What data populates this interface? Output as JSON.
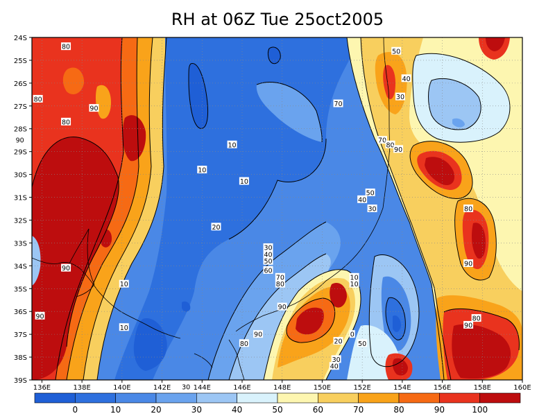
{
  "title": "RH at 06Z Tue 25oct2005",
  "lat_labels": [
    "24S",
    "25S",
    "26S",
    "27S",
    "28S",
    "29S",
    "30S",
    "31S",
    "32S",
    "33S",
    "34S",
    "35S",
    "36S",
    "37S",
    "38S",
    "39S"
  ],
  "lon_labels": [
    "136E",
    "138E",
    "140E",
    "142E",
    "144E",
    "146E",
    "148E",
    "150E",
    "152E",
    "154E",
    "156E",
    "158E",
    "160E"
  ],
  "colorbar": {
    "labels": [
      "0",
      "10",
      "20",
      "30",
      "40",
      "50",
      "60",
      "70",
      "80",
      "90",
      "100"
    ],
    "colors": [
      "#1f5fd6",
      "#2e70de",
      "#4a88e6",
      "#6aa3ee",
      "#9cc6f4",
      "#d9f2fc",
      "#fdf6b0",
      "#f8cf5e",
      "#f9a31a",
      "#f66a14",
      "#e9331e",
      "#bd0d0e"
    ]
  },
  "contour_labels": [
    {
      "text": "80",
      "lon": 137.2,
      "lat": -24.4
    },
    {
      "text": "80",
      "lon": 135.8,
      "lat": -26.7
    },
    {
      "text": "80",
      "lon": 137.2,
      "lat": -27.7
    },
    {
      "text": "90",
      "lon": 138.6,
      "lat": -27.1
    },
    {
      "text": "90",
      "lon": 134.9,
      "lat": -28.5
    },
    {
      "text": "90",
      "lon": 137.2,
      "lat": -34.1
    },
    {
      "text": "90",
      "lon": 135.9,
      "lat": -36.2
    },
    {
      "text": "10",
      "lon": 140.1,
      "lat": -34.8
    },
    {
      "text": "10",
      "lon": 140.1,
      "lat": -36.7
    },
    {
      "text": "10",
      "lon": 145.5,
      "lat": -28.7
    },
    {
      "text": "10",
      "lon": 144.0,
      "lat": -29.8
    },
    {
      "text": "10",
      "lon": 146.1,
      "lat": -30.3
    },
    {
      "text": "20",
      "lon": 144.7,
      "lat": -32.3
    },
    {
      "text": "30",
      "lon": 147.3,
      "lat": -33.2
    },
    {
      "text": "40",
      "lon": 147.3,
      "lat": -33.5
    },
    {
      "text": "50",
      "lon": 147.3,
      "lat": -33.8
    },
    {
      "text": "60",
      "lon": 147.3,
      "lat": -34.2
    },
    {
      "text": "70",
      "lon": 147.9,
      "lat": -34.5
    },
    {
      "text": "80",
      "lon": 147.9,
      "lat": -34.8
    },
    {
      "text": "90",
      "lon": 148.0,
      "lat": -35.8
    },
    {
      "text": "90",
      "lon": 146.8,
      "lat": -37.0
    },
    {
      "text": "80",
      "lon": 146.1,
      "lat": -37.4
    },
    {
      "text": "70",
      "lon": 150.8,
      "lat": -26.9
    },
    {
      "text": "50",
      "lon": 153.7,
      "lat": -24.6
    },
    {
      "text": "40",
      "lon": 154.2,
      "lat": -25.8
    },
    {
      "text": "30",
      "lon": 153.9,
      "lat": -26.6
    },
    {
      "text": "70",
      "lon": 153.0,
      "lat": -28.5
    },
    {
      "text": "80",
      "lon": 153.4,
      "lat": -28.7
    },
    {
      "text": "90",
      "lon": 153.8,
      "lat": -28.9
    },
    {
      "text": "50",
      "lon": 152.4,
      "lat": -30.8
    },
    {
      "text": "40",
      "lon": 152.0,
      "lat": -31.1
    },
    {
      "text": "30",
      "lon": 152.5,
      "lat": -31.5
    },
    {
      "text": "80",
      "lon": 157.3,
      "lat": -31.5
    },
    {
      "text": "90",
      "lon": 157.3,
      "lat": -33.9
    },
    {
      "text": "10",
      "lon": 151.6,
      "lat": -34.5
    },
    {
      "text": "10",
      "lon": 151.6,
      "lat": -34.8
    },
    {
      "text": "0",
      "lon": 151.5,
      "lat": -37.0
    },
    {
      "text": "20",
      "lon": 150.8,
      "lat": -37.3
    },
    {
      "text": "50",
      "lon": 152.0,
      "lat": -37.4
    },
    {
      "text": "30",
      "lon": 150.7,
      "lat": -38.1
    },
    {
      "text": "40",
      "lon": 150.6,
      "lat": -38.4
    },
    {
      "text": "80",
      "lon": 157.7,
      "lat": -36.3
    },
    {
      "text": "90",
      "lon": 157.3,
      "lat": -36.6
    },
    {
      "text": "30",
      "lon": 143.2,
      "lat": -39.3
    }
  ]
}
